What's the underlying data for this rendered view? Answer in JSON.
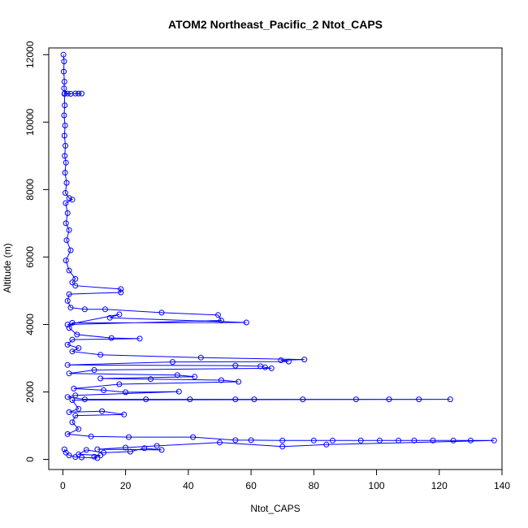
{
  "chart_data": {
    "type": "scatter",
    "title": "ATOM2 Northeast_Pacific_2 Ntot_CAPS",
    "xlabel": "Ntot_CAPS",
    "ylabel": "Altitude (m)",
    "xlim": [
      -4.5,
      140
    ],
    "ylim": [
      -300,
      12200
    ],
    "x_ticks": [
      0,
      20,
      40,
      60,
      80,
      100,
      120,
      140
    ],
    "y_ticks": [
      0,
      2000,
      4000,
      6000,
      8000,
      10000,
      12000
    ],
    "grid": false,
    "legend": "none",
    "marker": "open-circle",
    "connected": true,
    "color": "#0000ff",
    "points": [
      [
        0.2,
        12000
      ],
      [
        0.4,
        11800
      ],
      [
        0.3,
        11500
      ],
      [
        0.5,
        11200
      ],
      [
        0.4,
        11000
      ],
      [
        0.6,
        10850
      ],
      [
        1.5,
        10850
      ],
      [
        2.5,
        10840
      ],
      [
        4.0,
        10850
      ],
      [
        5.0,
        10850
      ],
      [
        6.0,
        10850
      ],
      [
        0.5,
        10840
      ],
      [
        0.6,
        10500
      ],
      [
        0.4,
        10200
      ],
      [
        0.7,
        9900
      ],
      [
        0.5,
        9600
      ],
      [
        0.8,
        9300
      ],
      [
        0.6,
        9000
      ],
      [
        1.0,
        8800
      ],
      [
        0.7,
        8500
      ],
      [
        1.2,
        8200
      ],
      [
        0.8,
        7900
      ],
      [
        2.0,
        7750
      ],
      [
        3.0,
        7700
      ],
      [
        0.9,
        7600
      ],
      [
        1.5,
        7300
      ],
      [
        1.0,
        7000
      ],
      [
        2.0,
        6800
      ],
      [
        1.2,
        6500
      ],
      [
        2.5,
        6200
      ],
      [
        1.0,
        5900
      ],
      [
        2.0,
        5600
      ],
      [
        4.0,
        5350
      ],
      [
        3.0,
        5250
      ],
      [
        4.0,
        5150
      ],
      [
        18.5,
        5050
      ],
      [
        18.5,
        4950
      ],
      [
        2.0,
        4900
      ],
      [
        1.5,
        4700
      ],
      [
        2.5,
        4500
      ],
      [
        7.0,
        4450
      ],
      [
        13.5,
        4450
      ],
      [
        31.5,
        4350
      ],
      [
        49.5,
        4280
      ],
      [
        50.5,
        4120
      ],
      [
        1.5,
        4000
      ],
      [
        18.0,
        4300
      ],
      [
        15.0,
        4200
      ],
      [
        58.5,
        4060
      ],
      [
        3.0,
        4050
      ],
      [
        2.0,
        3900
      ],
      [
        4.5,
        3700
      ],
      [
        15.5,
        3600
      ],
      [
        24.5,
        3580
      ],
      [
        3.0,
        3550
      ],
      [
        1.5,
        3400
      ],
      [
        5.0,
        3300
      ],
      [
        3.0,
        3200
      ],
      [
        12.0,
        3100
      ],
      [
        44.0,
        3020
      ],
      [
        77.0,
        2960
      ],
      [
        69.5,
        2940
      ],
      [
        72.0,
        2900
      ],
      [
        35.0,
        2890
      ],
      [
        1.5,
        2800
      ],
      [
        55.0,
        2780
      ],
      [
        63.0,
        2760
      ],
      [
        64.5,
        2730
      ],
      [
        66.5,
        2700
      ],
      [
        10.0,
        2650
      ],
      [
        2.0,
        2550
      ],
      [
        36.5,
        2500
      ],
      [
        42.0,
        2450
      ],
      [
        12.0,
        2400
      ],
      [
        28.0,
        2380
      ],
      [
        50.5,
        2350
      ],
      [
        56.0,
        2300
      ],
      [
        18.0,
        2230
      ],
      [
        3.5,
        2100
      ],
      [
        13.0,
        2050
      ],
      [
        20.0,
        1990
      ],
      [
        37.0,
        2010
      ],
      [
        4.0,
        1900
      ],
      [
        1.5,
        1850
      ],
      [
        7.0,
        1780
      ],
      [
        26.5,
        1780
      ],
      [
        40.5,
        1780
      ],
      [
        55.0,
        1780
      ],
      [
        61.0,
        1780
      ],
      [
        76.5,
        1780
      ],
      [
        93.5,
        1780
      ],
      [
        104.0,
        1780
      ],
      [
        113.5,
        1780
      ],
      [
        123.5,
        1780
      ],
      [
        3.0,
        1760
      ],
      [
        5.0,
        1500
      ],
      [
        2.0,
        1400
      ],
      [
        12.5,
        1430
      ],
      [
        19.5,
        1330
      ],
      [
        4.0,
        1300
      ],
      [
        3.0,
        1100
      ],
      [
        5.0,
        900
      ],
      [
        1.5,
        750
      ],
      [
        9.0,
        680
      ],
      [
        21.0,
        660
      ],
      [
        41.5,
        660
      ],
      [
        55.0,
        570
      ],
      [
        60.0,
        570
      ],
      [
        70.0,
        560
      ],
      [
        80.0,
        560
      ],
      [
        86.0,
        560
      ],
      [
        95.0,
        560
      ],
      [
        101.0,
        560
      ],
      [
        107.0,
        560
      ],
      [
        112.0,
        560
      ],
      [
        118.0,
        560
      ],
      [
        124.5,
        560
      ],
      [
        130.0,
        560
      ],
      [
        137.5,
        560
      ],
      [
        84.0,
        440
      ],
      [
        70.0,
        380
      ],
      [
        50.0,
        500
      ],
      [
        30.0,
        400
      ],
      [
        20.0,
        350
      ],
      [
        11.0,
        300
      ],
      [
        31.5,
        280
      ],
      [
        26.0,
        330
      ],
      [
        21.5,
        230
      ],
      [
        13.0,
        200
      ],
      [
        7.5,
        280
      ],
      [
        5.0,
        150
      ],
      [
        12.0,
        120
      ],
      [
        10.0,
        80
      ],
      [
        11.0,
        40
      ],
      [
        6.0,
        60
      ],
      [
        4.0,
        70
      ],
      [
        2.0,
        120
      ],
      [
        1.0,
        200
      ],
      [
        0.5,
        300
      ]
    ]
  }
}
